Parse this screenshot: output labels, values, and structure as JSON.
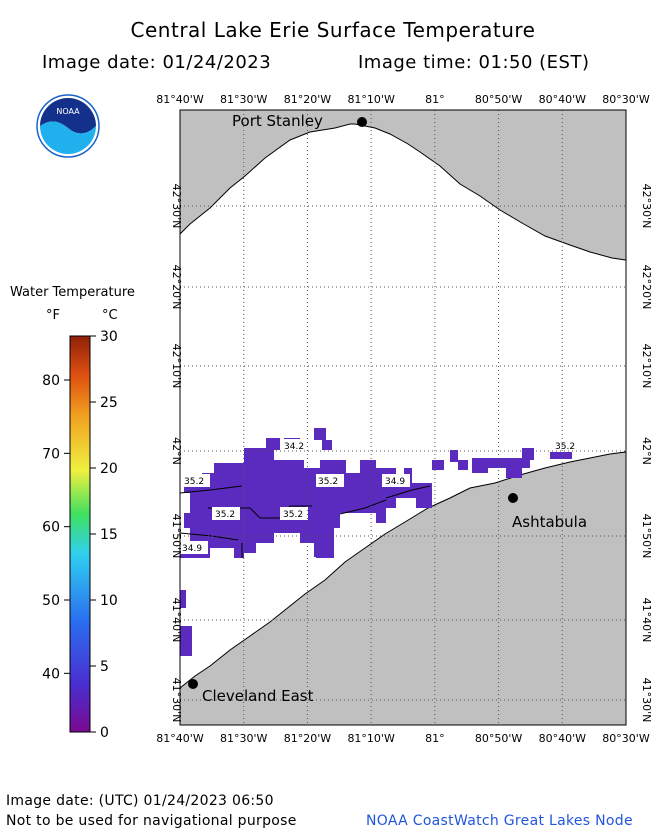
{
  "header": {
    "title": "Central Lake Erie Surface Temperature",
    "image_date_label": "Image date: 01/24/2023",
    "image_time_label": "Image time: 01:50 (EST)"
  },
  "logo": {
    "text": "NOAA"
  },
  "legend": {
    "title": "Water Temperature",
    "unit_f": "°F",
    "unit_c": "°C",
    "f_ticks": [
      "80",
      "70",
      "60",
      "50",
      "40"
    ],
    "c_ticks": [
      "30",
      "25",
      "20",
      "15",
      "10",
      "5",
      "0"
    ],
    "range_c": [
      0,
      30
    ],
    "colors": [
      "#7a0a90",
      "#4a2ed0",
      "#2a6ef0",
      "#30d0f0",
      "#40e060",
      "#f0f040",
      "#f0a020",
      "#e05010",
      "#902008"
    ]
  },
  "map": {
    "lon_labels": [
      "81°40'W",
      "81°30'W",
      "81°20'W",
      "81°10'W",
      "81°",
      "80°50'W",
      "80°40'W",
      "80°30'W"
    ],
    "lat_labels": [
      "42°30'N",
      "42°20'N",
      "42°10'N",
      "42°N",
      "41°50'N",
      "41°40'N",
      "41°30'N"
    ],
    "land_color": "#c0c0c0",
    "water_color": "#ffffff",
    "data_color": "#5b2bbf",
    "cities": [
      {
        "name": "Port Stanley"
      },
      {
        "name": "Ashtabula"
      },
      {
        "name": "Cleveland East"
      }
    ],
    "isotherm_labels": [
      "34.2",
      "35.2",
      "35.2",
      "34.9",
      "35.2",
      "35.2",
      "34.9",
      "35.2"
    ]
  },
  "footer": {
    "utc_date": "Image date: (UTC) 01/24/2023  06:50",
    "disclaimer": "Not to be used for navigational purpose",
    "credit": "NOAA CoastWatch Great Lakes Node"
  }
}
